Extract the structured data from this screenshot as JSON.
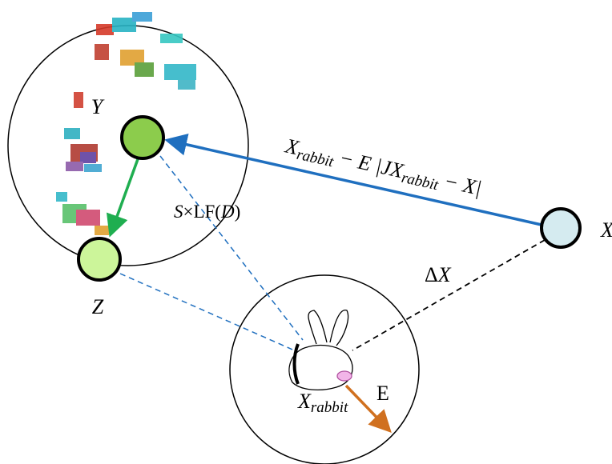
{
  "nodes": [
    {
      "label": "Y"
    },
    {
      "label": "Z"
    },
    {
      "label": "X"
    },
    {
      "label": [
        "X",
        "rabbit"
      ]
    }
  ],
  "edge_labels": {
    "update": [
      "X",
      "rabbit",
      " − E |JX",
      "rabbit",
      " − X|"
    ],
    "levy": [
      "S",
      "×LF(",
      "D",
      ")"
    ],
    "distance": [
      "Δ",
      "X"
    ],
    "escape": "E"
  }
}
